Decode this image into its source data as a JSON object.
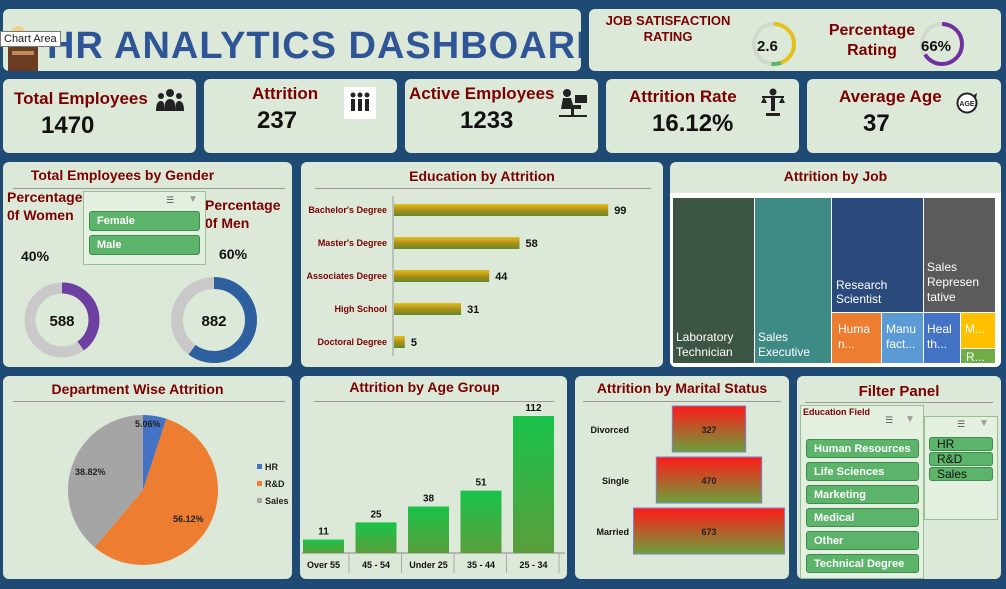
{
  "header": {
    "title": "HR ANALYTICS DASHBOARD",
    "tooltip": "Chart Area"
  },
  "satisfaction": {
    "job_label": "JOB SATISFACTION RATING",
    "job_value": "2.6",
    "job_fraction": 0.52,
    "pct_label": "Percentage Rating",
    "pct_value": "66%",
    "pct_fraction": 0.66
  },
  "kpis": {
    "total_employees": {
      "label": "Total Employees",
      "value": "1470",
      "icon": "people-group-icon"
    },
    "attrition": {
      "label": "Attrition",
      "value": "237",
      "icon": "people-leaving-icon"
    },
    "active_employees": {
      "label": "Active Employees",
      "value": "1233",
      "icon": "person-at-desk-icon"
    },
    "attrition_rate": {
      "label": "Attrition Rate",
      "value": "16.12%",
      "icon": "person-scale-icon"
    },
    "average_age": {
      "label": "Average Age",
      "value": "37",
      "icon": "age-icon"
    }
  },
  "gender": {
    "title": "Total Employees by Gender",
    "women_label": "Percentage 0f Women",
    "men_label": "Percentage 0f Men",
    "women_pct": "40%",
    "men_pct": "60%",
    "women_count": "588",
    "men_count": "882",
    "women_fraction": 0.4,
    "men_fraction": 0.6,
    "slicer_options": [
      "Female",
      "Male"
    ]
  },
  "filter_panel": {
    "title": "Filter Panel",
    "education_field_label": "Education Field",
    "education_fields": [
      "Human Resources",
      "Life Sciences",
      "Marketing",
      "Medical",
      "Other",
      "Technical Degree"
    ],
    "departments": [
      "HR",
      "R&D",
      "Sales"
    ]
  },
  "colors": {
    "title_blue": "#2f5597",
    "label_red": "#7b0000",
    "card_bg": "#dde9d8",
    "page_bg": "#1f4a73",
    "slicer_green": "#5cb46a"
  },
  "chart_data": [
    {
      "type": "bar",
      "orientation": "horizontal",
      "title": "Education by Attrition",
      "categories": [
        "Bachelor's Degree",
        "Master's Degree",
        "Associates Degree",
        "High School",
        "Doctoral Degree"
      ],
      "values": [
        99,
        58,
        44,
        31,
        5
      ],
      "xlim": [
        0,
        110
      ]
    },
    {
      "type": "heatmap",
      "subtype": "treemap",
      "title": "Attrition by Job",
      "labels": [
        "Laboratory Technician",
        "Sales Executive",
        "Research Scientist",
        "Sales Representative",
        "Human...",
        "Manufact...",
        "Health...",
        "M...",
        "R..."
      ],
      "colors": [
        "#3d5544",
        "#3e8a85",
        "#2a4a7c",
        "#5b5b5b",
        "#ed7d31",
        "#5b9bd5",
        "#4472c4",
        "#ffc000",
        "#70ad47"
      ]
    },
    {
      "type": "pie",
      "title": "Department Wise Attrition",
      "labels": [
        "HR",
        "R&D",
        "Sales"
      ],
      "values": [
        5.06,
        56.12,
        38.82
      ],
      "value_labels": [
        "5.06%",
        "56.12%",
        "38.82%"
      ],
      "colors": [
        "#4472c4",
        "#ed7d31",
        "#a5a5a5"
      ],
      "legend": "right"
    },
    {
      "type": "bar",
      "title": "Attrition by Age Group",
      "categories": [
        "Over 55",
        "45 - 54",
        "Under 25",
        "35 - 44",
        "25 - 34"
      ],
      "values": [
        11,
        25,
        38,
        51,
        112
      ],
      "ylim": [
        0,
        112
      ]
    },
    {
      "type": "bar",
      "subtype": "funnel",
      "title": "Attrition by Marital Status",
      "categories": [
        "Divorced",
        "Single",
        "Married"
      ],
      "values": [
        327,
        470,
        673
      ]
    }
  ]
}
